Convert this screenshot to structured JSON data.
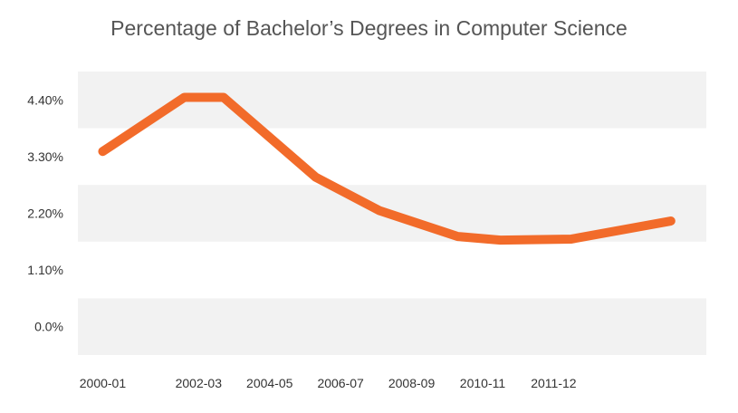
{
  "chart_data": {
    "type": "line",
    "title": "Percentage of Bachelor’s Degrees in Computer Science",
    "xlabel": "",
    "ylabel": "",
    "x_tick_labels": [
      "2000-01",
      "2002-03",
      "2004-05",
      "2006-07",
      "2008-09",
      "2010-11",
      "2011-12"
    ],
    "y_tick_labels": [
      "4.40%",
      "3.30%",
      "2.20%",
      "1.10%",
      "0.0%"
    ],
    "y_ticks": [
      4.4,
      3.3,
      2.2,
      1.1,
      0.0
    ],
    "ylim": [
      -0.55,
      4.95
    ],
    "grid": "alternating horizontal bands",
    "legend": "none",
    "series": [
      {
        "color": "#F26B2A",
        "points": [
          {
            "x": 0,
            "y": 3.4
          },
          {
            "x": 1.15,
            "y": 4.45
          },
          {
            "x": 1.7,
            "y": 4.45
          },
          {
            "x": 3.0,
            "y": 2.9
          },
          {
            "x": 3.9,
            "y": 2.25
          },
          {
            "x": 5.0,
            "y": 1.75
          },
          {
            "x": 5.6,
            "y": 1.68
          },
          {
            "x": 6.6,
            "y": 1.7
          },
          {
            "x": 8.0,
            "y": 2.05
          }
        ]
      }
    ],
    "x_tick_positions": [
      0,
      1.35,
      2.35,
      3.35,
      4.35,
      5.35,
      6.35
    ],
    "xlim": [
      -0.35,
      8.5
    ],
    "band_color": "#F2F2F2"
  }
}
